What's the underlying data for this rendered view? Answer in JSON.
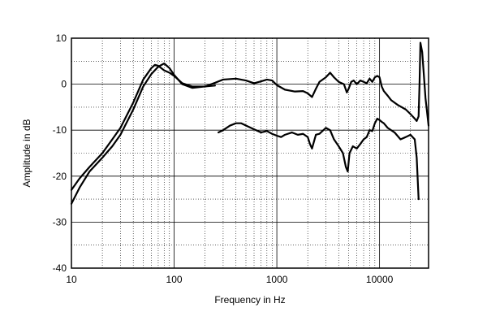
{
  "chart_data": {
    "type": "line",
    "title": "",
    "xlabel": "Frequency in Hz",
    "ylabel": "Amplitude in dB",
    "x_scale": "log",
    "xlim": [
      10,
      30000
    ],
    "ylim": [
      -40,
      10
    ],
    "x_ticks": [
      10,
      100,
      1000,
      10000
    ],
    "x_tick_labels": [
      "10",
      "100",
      "1000",
      "10000"
    ],
    "y_ticks": [
      10,
      0,
      -10,
      -20,
      -30,
      -40
    ],
    "y_tick_labels": [
      "10",
      "0",
      "-10",
      "-20",
      "-30",
      "-40"
    ],
    "grid": "on (solid major, dotted minor)",
    "legend": "none",
    "series": [
      {
        "x": [
          10,
          12,
          15,
          20,
          25,
          30,
          40,
          50,
          60,
          65,
          70,
          80,
          90,
          100,
          120,
          150,
          200,
          250,
          300,
          400,
          500,
          600,
          700,
          800,
          900,
          1000,
          1200,
          1500,
          1800,
          2000,
          2200,
          2400,
          2600,
          3000,
          3300,
          3600,
          4000,
          4500,
          4800,
          5000,
          5300,
          5600,
          6000,
          6500,
          7000,
          7500,
          8000,
          8500,
          9000,
          9500,
          10000,
          10500,
          11000,
          12000,
          13000,
          15000,
          18000,
          20000,
          22000,
          23000,
          24000,
          24500,
          25000,
          26000,
          27000,
          28000,
          30000
        ],
        "y": [
          -23,
          -20.5,
          -18,
          -15,
          -12,
          -9.5,
          -4,
          1,
          3.5,
          4.2,
          4,
          3,
          2.5,
          1.8,
          0.2,
          -0.5,
          -0.5,
          0.3,
          1,
          1.2,
          0.8,
          0.2,
          0.6,
          1,
          0.8,
          -0.2,
          -1.2,
          -1.6,
          -1.5,
          -2,
          -2.8,
          -1,
          0.5,
          1.5,
          2.5,
          1.5,
          0.5,
          0,
          -1.8,
          -1,
          0.5,
          0.8,
          0,
          0.8,
          0.5,
          0.2,
          1.2,
          0.5,
          1.5,
          1.8,
          1.5,
          -0.5,
          -1.5,
          -2.5,
          -3.5,
          -4.5,
          -5.5,
          -6.5,
          -7.5,
          -8,
          -7,
          0,
          9,
          7,
          2,
          -3,
          -9
        ]
      },
      {
        "x": [
          10,
          12,
          15,
          20,
          25,
          30,
          40,
          50,
          60,
          70,
          80,
          90,
          100,
          120,
          150,
          200,
          250
        ],
        "y": [
          -26,
          -22.5,
          -19,
          -16,
          -13.5,
          -11,
          -5.5,
          -0.5,
          2.2,
          3.8,
          4.5,
          3.5,
          2,
          0,
          -0.8,
          -0.5,
          -0.3
        ]
      },
      {
        "x": [
          270,
          300,
          350,
          400,
          450,
          500,
          600,
          700,
          800,
          900,
          1000,
          1100,
          1200,
          1400,
          1600,
          1800,
          2000,
          2100,
          2200,
          2400,
          2600,
          3000,
          3300,
          3600,
          4000,
          4400,
          4700,
          4900,
          5100,
          5500,
          6000,
          6500,
          7000,
          7500,
          8000,
          8500,
          9000,
          9500,
          10000,
          10500,
          11000,
          12000,
          14000,
          16000,
          18000,
          20000,
          22000,
          23000,
          24000
        ],
        "y": [
          -10.5,
          -10,
          -9,
          -8.5,
          -8.5,
          -9,
          -9.8,
          -10.5,
          -10.2,
          -10.8,
          -11.2,
          -11.5,
          -11,
          -10.5,
          -11,
          -10.8,
          -11.5,
          -13,
          -14,
          -11,
          -10.8,
          -9.5,
          -10,
          -12,
          -13.5,
          -15,
          -18,
          -19,
          -15,
          -13.5,
          -14,
          -13,
          -12,
          -11.5,
          -10,
          -10.2,
          -8.5,
          -7.5,
          -7.8,
          -8.2,
          -8.5,
          -9.5,
          -10.5,
          -12,
          -11.5,
          -11,
          -12,
          -16,
          -25
        ]
      }
    ]
  }
}
